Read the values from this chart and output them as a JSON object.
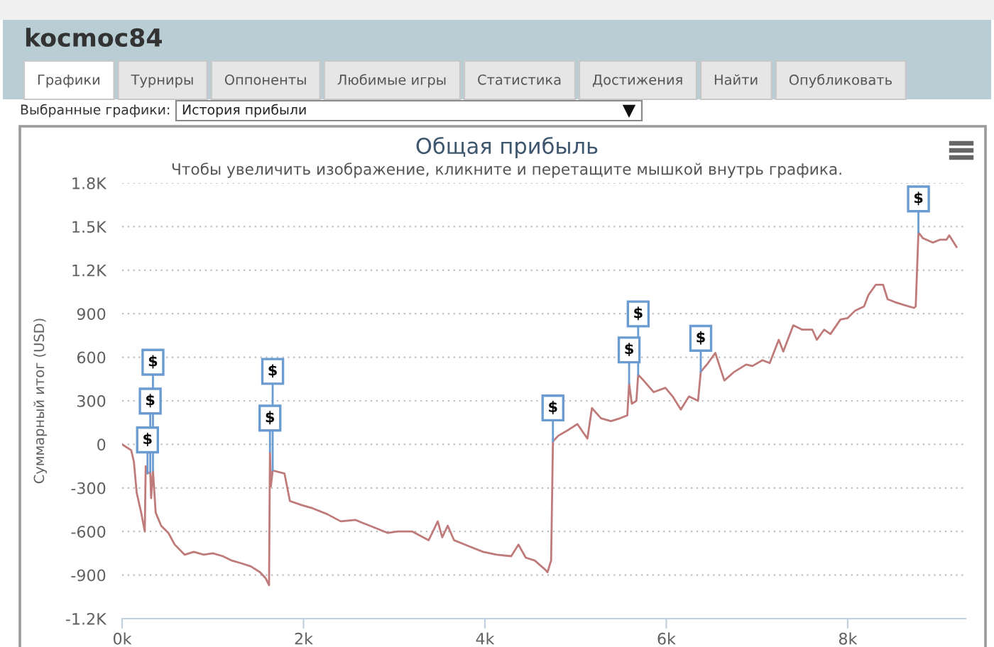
{
  "chart_data": {
    "type": "line",
    "title": "Общая прибыль",
    "subtitle": "Чтобы увеличить изображение, кликните и перетащите мышкой внутрь графика.",
    "ylabel": "Суммарный итог (USD)",
    "x": [
      0,
      50,
      100,
      130,
      160,
      210,
      250,
      260,
      280,
      310,
      320,
      340,
      370,
      430,
      510,
      580,
      690,
      790,
      900,
      1000,
      1110,
      1210,
      1320,
      1420,
      1520,
      1580,
      1620,
      1630,
      1640,
      1660,
      1790,
      1850,
      1990,
      2100,
      2260,
      2410,
      2570,
      2730,
      2930,
      3040,
      3200,
      3380,
      3480,
      3530,
      3590,
      3660,
      3820,
      3980,
      4130,
      4290,
      4370,
      4450,
      4550,
      4660,
      4690,
      4730,
      4750,
      4810,
      4920,
      5020,
      5130,
      5180,
      5280,
      5390,
      5490,
      5570,
      5590,
      5620,
      5670,
      5690,
      5750,
      5860,
      5990,
      6070,
      6160,
      6250,
      6350,
      6380,
      6460,
      6540,
      6640,
      6750,
      6880,
      6950,
      7060,
      7140,
      7240,
      7290,
      7400,
      7500,
      7610,
      7660,
      7740,
      7810,
      7920,
      8000,
      8080,
      8180,
      8230,
      8310,
      8390,
      8440,
      8520,
      8620,
      8730,
      8750,
      8780,
      8830,
      8940,
      9020,
      9090,
      9120,
      9200
    ],
    "series": [
      {
        "color": "#bf7a7a",
        "values": [
          0,
          -20,
          -40,
          -120,
          -330,
          -470,
          -600,
          -150,
          -200,
          -190,
          -370,
          -180,
          -470,
          -560,
          -610,
          -690,
          -760,
          -740,
          -760,
          -750,
          -770,
          -800,
          -820,
          -840,
          -880,
          -920,
          -970,
          -50,
          -290,
          -180,
          -200,
          -390,
          -420,
          -440,
          -480,
          -530,
          -520,
          -560,
          -610,
          -600,
          -600,
          -660,
          -530,
          -640,
          -560,
          -660,
          -700,
          -740,
          -760,
          -770,
          -690,
          -780,
          -800,
          -860,
          -880,
          -800,
          20,
          60,
          100,
          140,
          40,
          250,
          180,
          160,
          180,
          200,
          420,
          280,
          300,
          480,
          440,
          360,
          390,
          330,
          240,
          330,
          300,
          500,
          560,
          630,
          440,
          500,
          550,
          540,
          580,
          560,
          720,
          640,
          820,
          790,
          790,
          720,
          790,
          760,
          860,
          870,
          920,
          950,
          1030,
          1100,
          1100,
          1000,
          980,
          960,
          940,
          950,
          1460,
          1420,
          1390,
          1410,
          1410,
          1440,
          1360
        ]
      }
    ],
    "xlim": [
      0,
      9300
    ],
    "xticks": [
      {
        "value": 0,
        "label": "0k"
      },
      {
        "value": 2000,
        "label": "2k"
      },
      {
        "value": 4000,
        "label": "4k"
      },
      {
        "value": 6000,
        "label": "6k"
      },
      {
        "value": 8000,
        "label": "8k"
      }
    ],
    "ylim": [
      -1200,
      1800
    ],
    "yticks": [
      {
        "value": -1200,
        "label": "-1.2K"
      },
      -900,
      -600,
      -300,
      0,
      300,
      600,
      900,
      {
        "value": 1200,
        "label": "1.2K"
      },
      {
        "value": 1500,
        "label": "1.5K"
      },
      {
        "value": 1800,
        "label": "1.8K"
      }
    ],
    "grid": "y",
    "line_style": "solid",
    "annotations": [
      "kocmoc84",
      "Графики",
      "Турниры",
      "Оппоненты",
      "Любимые игры",
      "Статистика",
      "Достижения",
      "Найти",
      "Опубликовать",
      "Выбранные графики:",
      "История прибыли",
      {
        "text": "$",
        "x": 280,
        "y": -200
      },
      {
        "text": "$",
        "x": 310,
        "y": -190
      },
      {
        "text": "$",
        "x": 340,
        "y": -180
      },
      {
        "text": "$",
        "x": 1630,
        "y": -50
      },
      {
        "text": "$",
        "x": 1660,
        "y": -180
      },
      {
        "text": "$",
        "x": 4750,
        "y": 20
      },
      {
        "text": "$",
        "x": 5590,
        "y": 420
      },
      {
        "text": "$",
        "x": 5690,
        "y": 480
      },
      {
        "text": "$",
        "x": 6380,
        "y": 500
      },
      {
        "text": "$",
        "x": 8780,
        "y": 1460
      }
    ]
  }
}
